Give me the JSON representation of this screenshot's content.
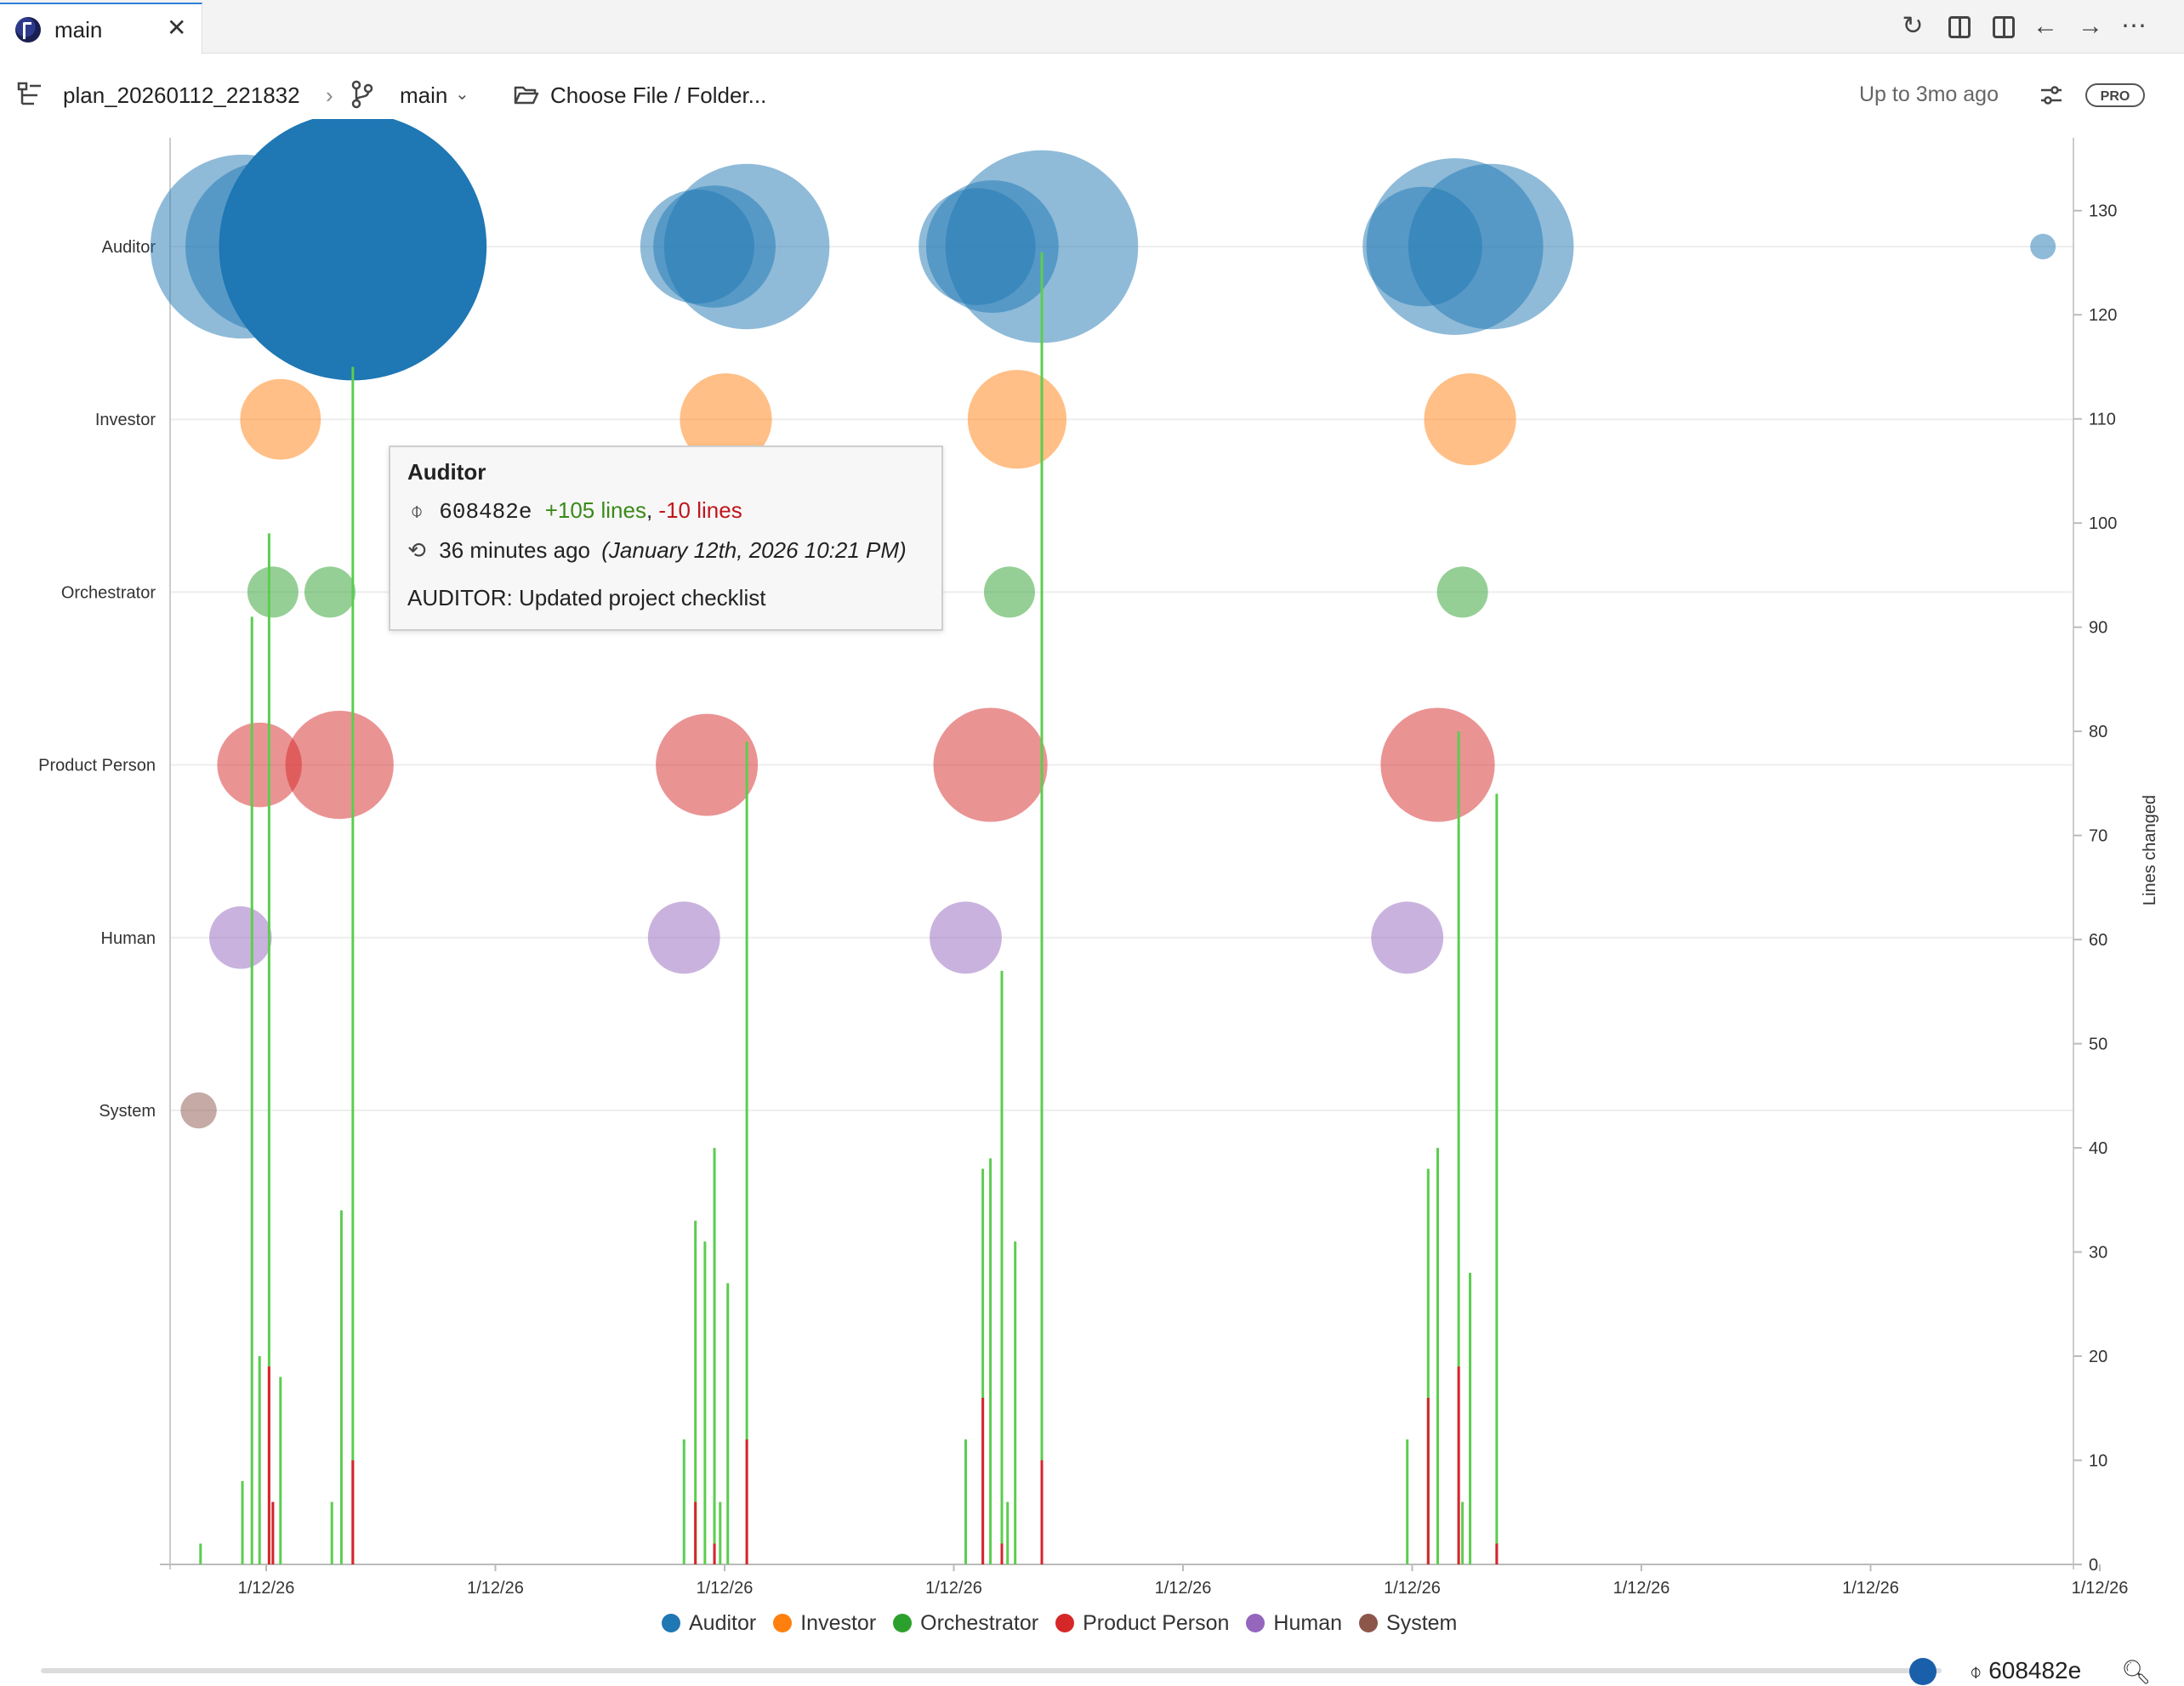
{
  "tab": {
    "label": "main",
    "close": "✕"
  },
  "tab_actions": [
    "refresh-icon",
    "split-editor-icon",
    "toggle-panel-icon",
    "back-arrow-icon",
    "forward-arrow-icon",
    "more-icon"
  ],
  "toolbar": {
    "plan_name": "plan_20260112_221832",
    "separator": "›",
    "branch": "main",
    "branch_caret": "⌄",
    "choose_label": "Choose File / Folder...",
    "range_label": "Up to 3mo ago",
    "pro_badge": "PRO"
  },
  "chart_data": {
    "type": "scatter",
    "title": "",
    "xlabel": "",
    "ylabel_right": "Lines changed",
    "y_categories": [
      "Auditor",
      "Investor",
      "Orchestrator",
      "Product Person",
      "Human",
      "System"
    ],
    "right_ticks": [
      0,
      10,
      20,
      30,
      40,
      50,
      60,
      70,
      80,
      90,
      100,
      110,
      120,
      130
    ],
    "right_ylim": [
      0,
      137
    ],
    "x_ticks": [
      "1/12/26",
      "1/12/26",
      "1/12/26",
      "1/12/26",
      "1/12/26",
      "1/12/26",
      "1/12/26",
      "1/12/26",
      "1/12/26"
    ],
    "xlim": [
      0,
      100
    ],
    "legend_position": "bottom-center",
    "legend": [
      {
        "name": "Auditor",
        "color": "#1f77b4"
      },
      {
        "name": "Investor",
        "color": "#ff7f0e"
      },
      {
        "name": "Orchestrator",
        "color": "#2ca02c"
      },
      {
        "name": "Product Person",
        "color": "#d62728"
      },
      {
        "name": "Human",
        "color": "#9467bd"
      },
      {
        "name": "System",
        "color": "#8c564b"
      }
    ],
    "bubbles": [
      {
        "role": "Auditor",
        "x": 3.8,
        "size": 52
      },
      {
        "role": "Auditor",
        "x": 5.3,
        "size": 45
      },
      {
        "role": "Auditor",
        "x": 9.6,
        "size": 110,
        "highlight": true
      },
      {
        "role": "Auditor",
        "x": 27.7,
        "size": 20
      },
      {
        "role": "Auditor",
        "x": 28.6,
        "size": 23
      },
      {
        "role": "Auditor",
        "x": 30.3,
        "size": 42
      },
      {
        "role": "Auditor",
        "x": 42.4,
        "size": 21
      },
      {
        "role": "Auditor",
        "x": 43.2,
        "size": 27
      },
      {
        "role": "Auditor",
        "x": 45.8,
        "size": 57
      },
      {
        "role": "Auditor",
        "x": 65.8,
        "size": 22
      },
      {
        "role": "Auditor",
        "x": 67.5,
        "size": 48
      },
      {
        "role": "Auditor",
        "x": 69.4,
        "size": 42
      },
      {
        "role": "Auditor",
        "x": 98.4,
        "size": 1
      },
      {
        "role": "Investor",
        "x": 5.8,
        "size": 10
      },
      {
        "role": "Investor",
        "x": 29.2,
        "size": 13
      },
      {
        "role": "Investor",
        "x": 44.5,
        "size": 15
      },
      {
        "role": "Investor",
        "x": 68.3,
        "size": 13
      },
      {
        "role": "Orchestrator",
        "x": 5.4,
        "size": 4
      },
      {
        "role": "Orchestrator",
        "x": 8.4,
        "size": 4
      },
      {
        "role": "Orchestrator",
        "x": 44.1,
        "size": 4
      },
      {
        "role": "Orchestrator",
        "x": 67.9,
        "size": 4
      },
      {
        "role": "Product Person",
        "x": 4.7,
        "size": 11
      },
      {
        "role": "Product Person",
        "x": 8.9,
        "size": 18
      },
      {
        "role": "Product Person",
        "x": 28.2,
        "size": 16
      },
      {
        "role": "Product Person",
        "x": 43.1,
        "size": 20
      },
      {
        "role": "Product Person",
        "x": 66.6,
        "size": 20
      },
      {
        "role": "Human",
        "x": 3.7,
        "size": 6
      },
      {
        "role": "Human",
        "x": 27.0,
        "size": 8
      },
      {
        "role": "Human",
        "x": 41.8,
        "size": 8
      },
      {
        "role": "Human",
        "x": 65.0,
        "size": 8
      },
      {
        "role": "System",
        "x": 1.5,
        "size": 2
      }
    ],
    "line_bars": [
      {
        "x": 1.6,
        "added": 2,
        "removed": 0
      },
      {
        "x": 3.8,
        "added": 8,
        "removed": 0
      },
      {
        "x": 4.3,
        "added": 91,
        "removed": 0
      },
      {
        "x": 4.7,
        "added": 20,
        "removed": 0
      },
      {
        "x": 5.2,
        "added": 99,
        "removed": 19
      },
      {
        "x": 5.4,
        "added": 6,
        "removed": 6
      },
      {
        "x": 5.8,
        "added": 18,
        "removed": 0
      },
      {
        "x": 8.5,
        "added": 6,
        "removed": 0
      },
      {
        "x": 9.0,
        "added": 34,
        "removed": 0
      },
      {
        "x": 9.6,
        "added": 115,
        "removed": 10
      },
      {
        "x": 27.0,
        "added": 12,
        "removed": 0
      },
      {
        "x": 27.6,
        "added": 33,
        "removed": 6
      },
      {
        "x": 28.1,
        "added": 31,
        "removed": 0
      },
      {
        "x": 28.6,
        "added": 40,
        "removed": 2
      },
      {
        "x": 28.9,
        "added": 6,
        "removed": 0
      },
      {
        "x": 29.3,
        "added": 27,
        "removed": 0
      },
      {
        "x": 30.3,
        "added": 79,
        "removed": 12
      },
      {
        "x": 41.8,
        "added": 12,
        "removed": 0
      },
      {
        "x": 42.7,
        "added": 38,
        "removed": 16
      },
      {
        "x": 43.1,
        "added": 39,
        "removed": 0
      },
      {
        "x": 43.7,
        "added": 57,
        "removed": 2
      },
      {
        "x": 44.0,
        "added": 6,
        "removed": 0
      },
      {
        "x": 44.4,
        "added": 31,
        "removed": 0
      },
      {
        "x": 45.8,
        "added": 126,
        "removed": 10
      },
      {
        "x": 65.0,
        "added": 12,
        "removed": 0
      },
      {
        "x": 66.1,
        "added": 38,
        "removed": 16
      },
      {
        "x": 66.6,
        "added": 40,
        "removed": 0
      },
      {
        "x": 67.7,
        "added": 80,
        "removed": 19
      },
      {
        "x": 67.9,
        "added": 6,
        "removed": 0
      },
      {
        "x": 68.3,
        "added": 28,
        "removed": 0
      },
      {
        "x": 69.7,
        "added": 74,
        "removed": 2
      }
    ]
  },
  "tooltip": {
    "title": "Auditor",
    "commit_hash": "608482e",
    "added": "+105 lines",
    "sep": ",",
    "removed": "-10 lines",
    "relative_time": "36 minutes ago",
    "absolute_time": "(January 12th, 2026 10:21 PM)",
    "message": "AUDITOR: Updated project checklist"
  },
  "slider": {
    "value": 0.99,
    "commit_label": "608482e"
  }
}
